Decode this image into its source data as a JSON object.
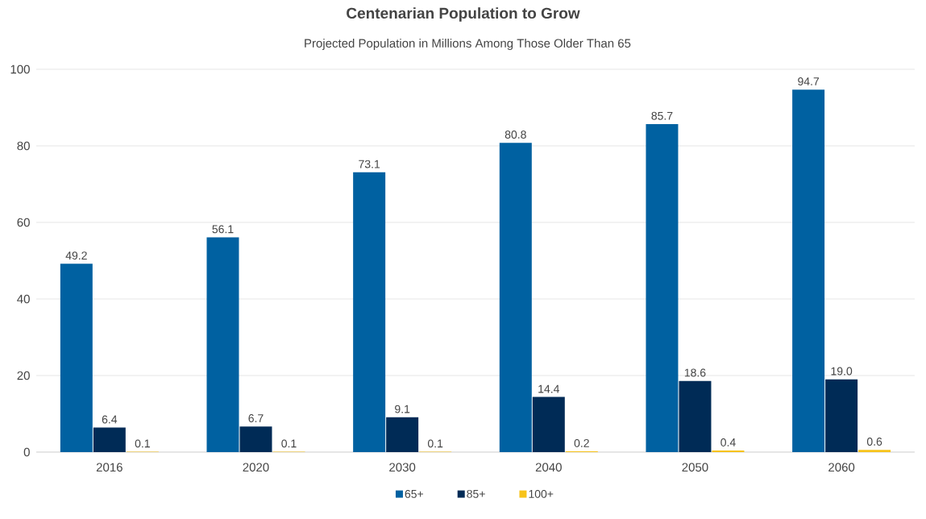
{
  "chart_data": {
    "type": "bar",
    "title": "Centenarian Population to Grow",
    "subtitle": "Projected Population in Millions Among Those Older Than 65",
    "categories": [
      "2016",
      "2020",
      "2030",
      "2040",
      "2050",
      "2060"
    ],
    "series": [
      {
        "name": "65+",
        "color": "#0061a1",
        "values": [
          49.2,
          56.1,
          73.1,
          80.8,
          85.7,
          94.7
        ],
        "value_labels": [
          "49.2",
          "56.1",
          "73.1",
          "80.8",
          "85.7",
          "94.7"
        ]
      },
      {
        "name": "85+",
        "color": "#002b56",
        "values": [
          6.4,
          6.7,
          9.1,
          14.4,
          18.6,
          19.0
        ],
        "value_labels": [
          "6.4",
          "6.7",
          "9.1",
          "14.4",
          "18.6",
          "19.0"
        ]
      },
      {
        "name": "100+",
        "color": "#f7c31a",
        "values": [
          0.1,
          0.1,
          0.1,
          0.2,
          0.4,
          0.6
        ],
        "value_labels": [
          "0.1",
          "0.1",
          "0.1",
          "0.2",
          "0.4",
          "0.6"
        ]
      }
    ],
    "ylim": [
      0,
      100
    ],
    "yticks": [
      0,
      20,
      40,
      60,
      80,
      100
    ],
    "grid": "y",
    "legend": "bottom"
  }
}
